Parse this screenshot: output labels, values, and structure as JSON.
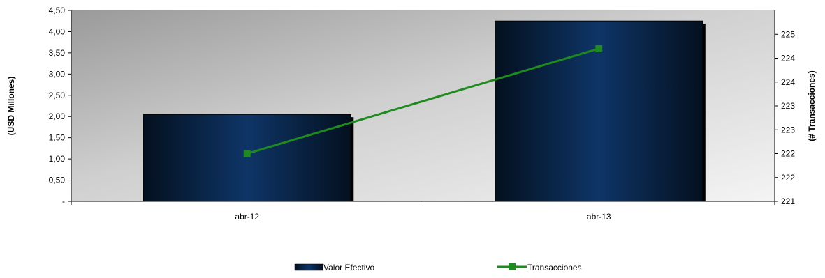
{
  "chart_data": {
    "type": "bar",
    "categories": [
      "abr-12",
      "abr-13"
    ],
    "series": [
      {
        "name": "Valor Efectivo",
        "type": "bar",
        "axis": "left",
        "values": [
          2.05,
          4.25
        ],
        "color": "#0d2a4f"
      },
      {
        "name": "Transacciones",
        "type": "line",
        "axis": "right",
        "values": [
          222.0,
          224.2
        ],
        "color": "#1f8a1f",
        "marker": "square"
      }
    ],
    "ylabel": "(USD Millones)",
    "ylabel_right": "(# Transacciones)",
    "ylim": [
      0,
      4.5
    ],
    "ylim_right": [
      221,
      225
    ],
    "y_ticks": [
      {
        "value": 0,
        "label": "-"
      },
      {
        "value": 0.5,
        "label": "0,50"
      },
      {
        "value": 1.0,
        "label": "1,00"
      },
      {
        "value": 1.5,
        "label": "1,50"
      },
      {
        "value": 2.0,
        "label": "2,00"
      },
      {
        "value": 2.5,
        "label": "2,50"
      },
      {
        "value": 3.0,
        "label": "3,00"
      },
      {
        "value": 3.5,
        "label": "3,50"
      },
      {
        "value": 4.0,
        "label": "4,00"
      },
      {
        "value": 4.5,
        "label": "4,50"
      }
    ],
    "y_ticks_right": [
      {
        "value": 221.0,
        "label": "221"
      },
      {
        "value": 221.5,
        "label": "222"
      },
      {
        "value": 222.0,
        "label": "222"
      },
      {
        "value": 222.5,
        "label": "223"
      },
      {
        "value": 223.0,
        "label": "223"
      },
      {
        "value": 223.5,
        "label": "224"
      },
      {
        "value": 224.0,
        "label": "224"
      },
      {
        "value": 224.5,
        "label": "225"
      }
    ],
    "grid": false,
    "legend_position": "bottom"
  }
}
